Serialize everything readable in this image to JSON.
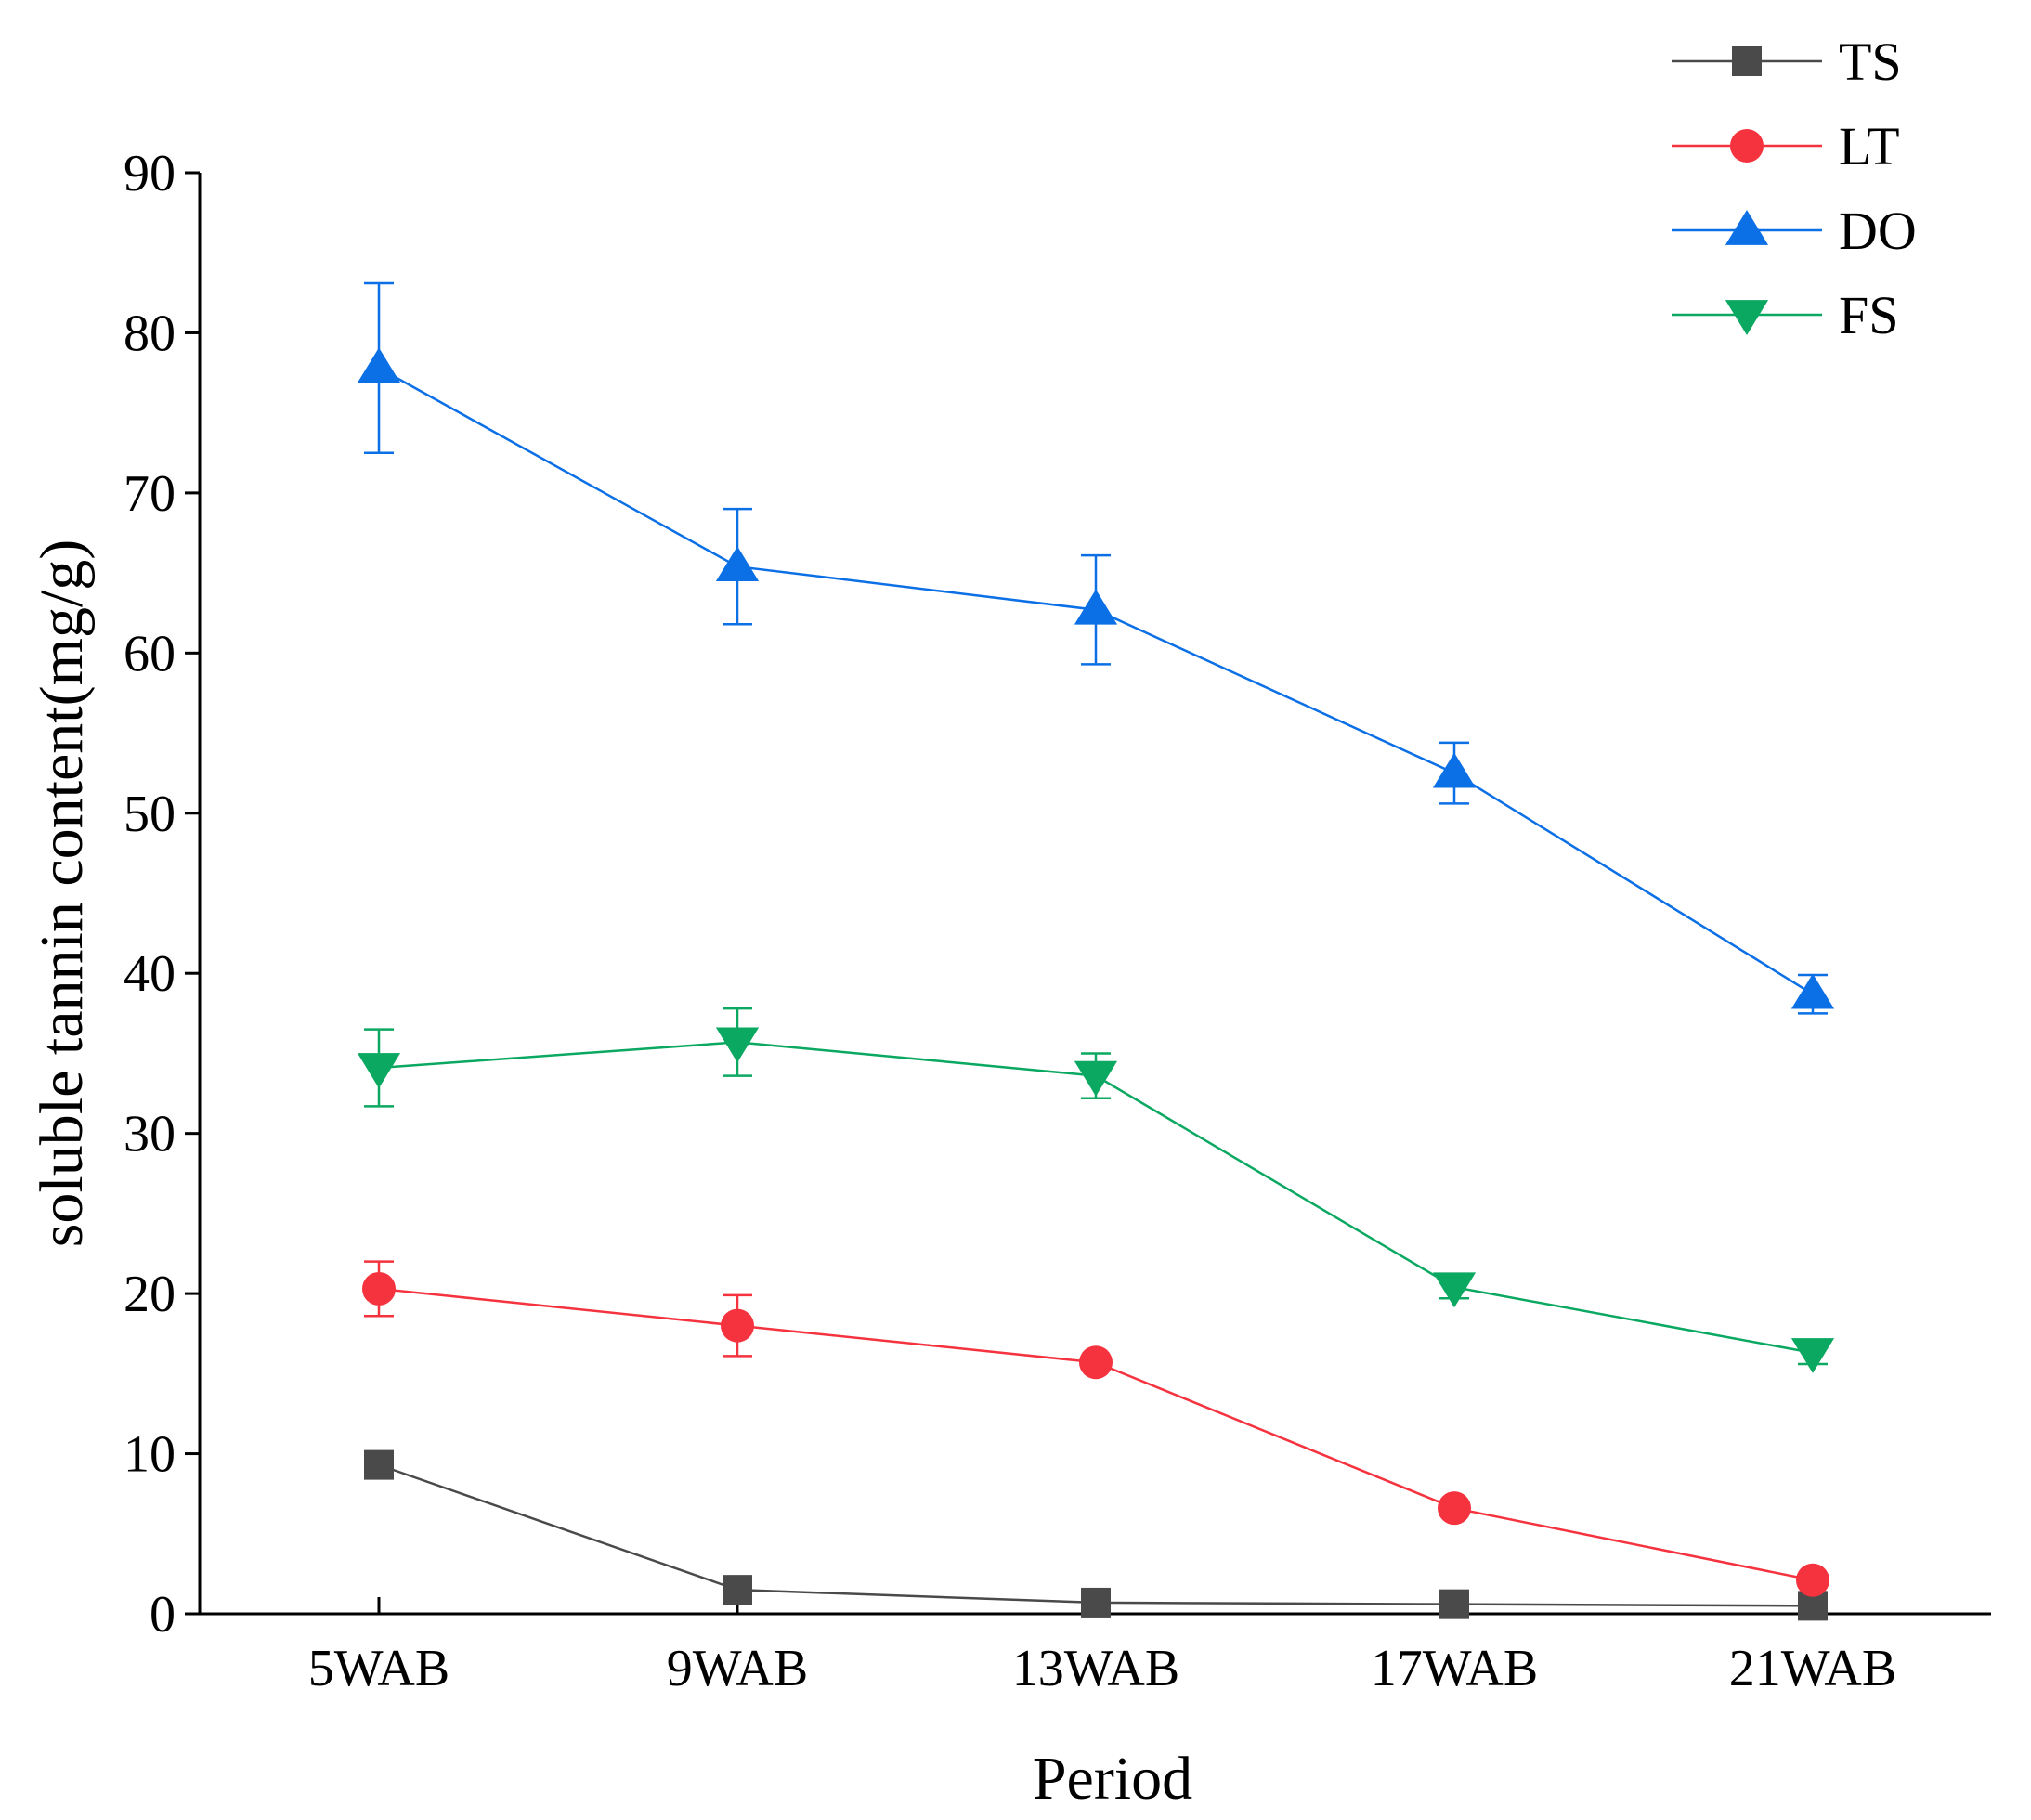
{
  "chart_data": {
    "type": "line",
    "title": "",
    "xlabel": "Period",
    "ylabel": "soluble tannin content(mg/g)",
    "categories": [
      "5WAB",
      "9WAB",
      "13WAB",
      "17WAB",
      "21WAB"
    ],
    "ylim": [
      0,
      90
    ],
    "yticks": [
      0,
      10,
      20,
      30,
      40,
      50,
      60,
      70,
      80,
      90
    ],
    "grid": false,
    "legend_position": "top-right",
    "series": [
      {
        "name": "TS",
        "color": "#4a4a4a",
        "marker": "square",
        "values": [
          9.3,
          1.5,
          0.7,
          0.6,
          0.5
        ],
        "errors": [
          0,
          0,
          0,
          0,
          0
        ]
      },
      {
        "name": "LT",
        "color": "#f5333f",
        "marker": "circle",
        "values": [
          20.3,
          18.0,
          15.7,
          6.6,
          2.1
        ],
        "errors": [
          1.7,
          1.9,
          0,
          0,
          0
        ]
      },
      {
        "name": "DO",
        "color": "#0b6fe6",
        "marker": "triangle-up",
        "values": [
          77.8,
          65.4,
          62.7,
          52.5,
          38.7
        ],
        "errors": [
          5.3,
          3.6,
          3.4,
          1.9,
          1.2
        ]
      },
      {
        "name": "FS",
        "color": "#0aa860",
        "marker": "triangle-down",
        "values": [
          34.1,
          35.7,
          33.6,
          20.4,
          16.3
        ],
        "errors": [
          2.4,
          2.1,
          1.4,
          0.7,
          0.7
        ]
      }
    ]
  }
}
